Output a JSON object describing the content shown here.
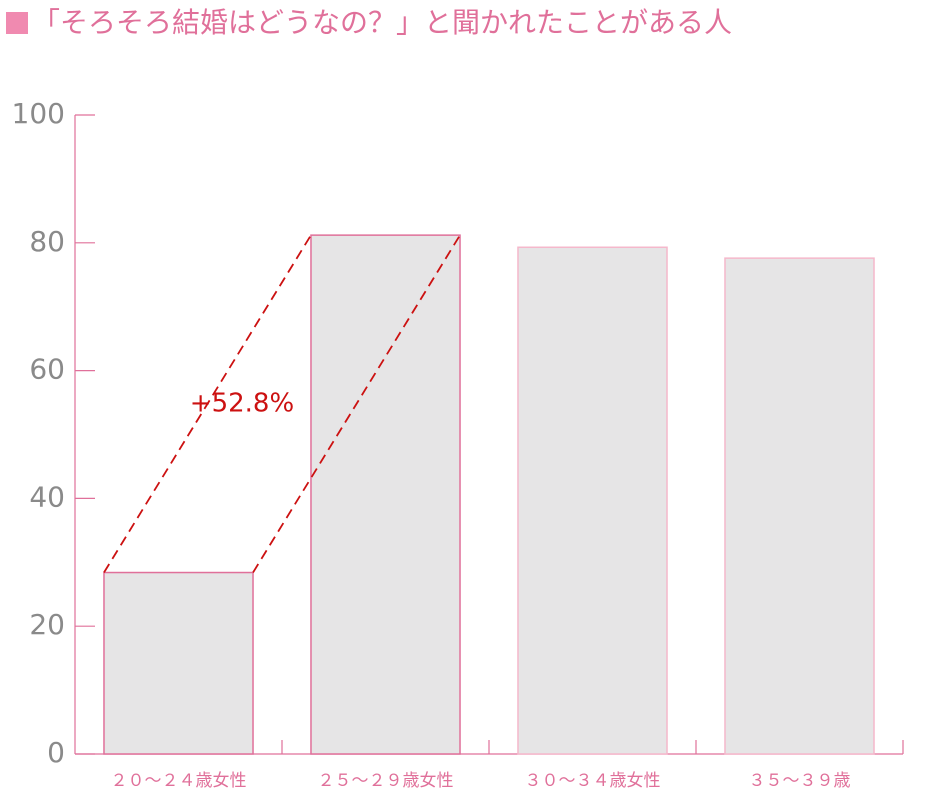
{
  "chart_data": {
    "type": "bar",
    "title": "「そろそろ結婚はどうなの？」と聞かれたことがある人",
    "categories": [
      "２０～２４歳女性",
      "２５～２９歳女性",
      "３０～３４歳女性",
      "３５～３９歳"
    ],
    "values": [
      28.4,
      81.2,
      79.3,
      77.6
    ],
    "color": "#e6e5e6",
    "edgecolors": [
      "#e0709a",
      "#e0709a",
      "#f5b8cb",
      "#f5b8cb"
    ],
    "ylim": [
      0,
      100
    ],
    "yticks": [
      0,
      20,
      40,
      60,
      80,
      100
    ],
    "annotation": {
      "text": "+52.8%",
      "color": "#cc1111"
    }
  }
}
